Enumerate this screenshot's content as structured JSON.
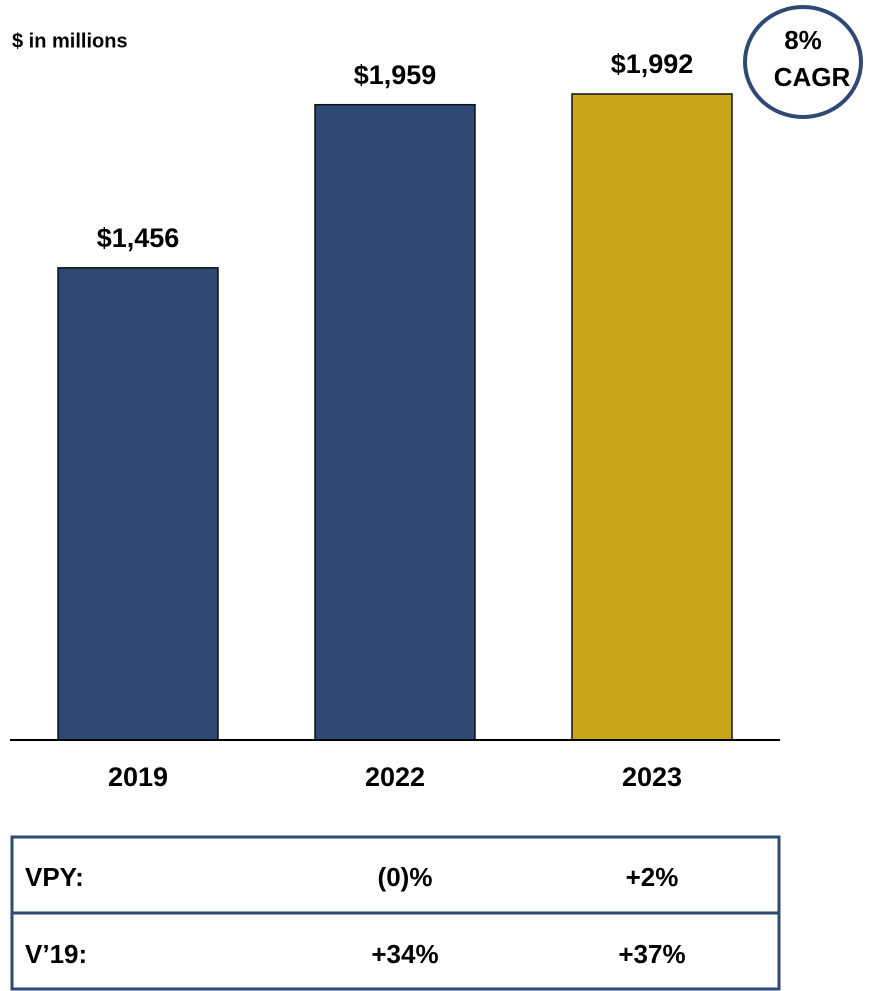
{
  "chart_data": {
    "type": "bar",
    "subtitle": "$ in millions",
    "categories": [
      "2019",
      "2022",
      "2023"
    ],
    "values": [
      1456,
      1959,
      1992
    ],
    "value_labels": [
      "$1,456",
      "$1,959",
      "$1,992"
    ],
    "colors": [
      "#2e4a74",
      "#2e4a74",
      "#c9a617"
    ],
    "annotation": [
      "8%",
      "CAGR"
    ]
  },
  "table": {
    "rows": [
      {
        "label": "VPY:",
        "cells": [
          "(0)%",
          "+2%"
        ]
      },
      {
        "label": "V’19:",
        "cells": [
          "+34%",
          "+37%"
        ]
      }
    ]
  }
}
